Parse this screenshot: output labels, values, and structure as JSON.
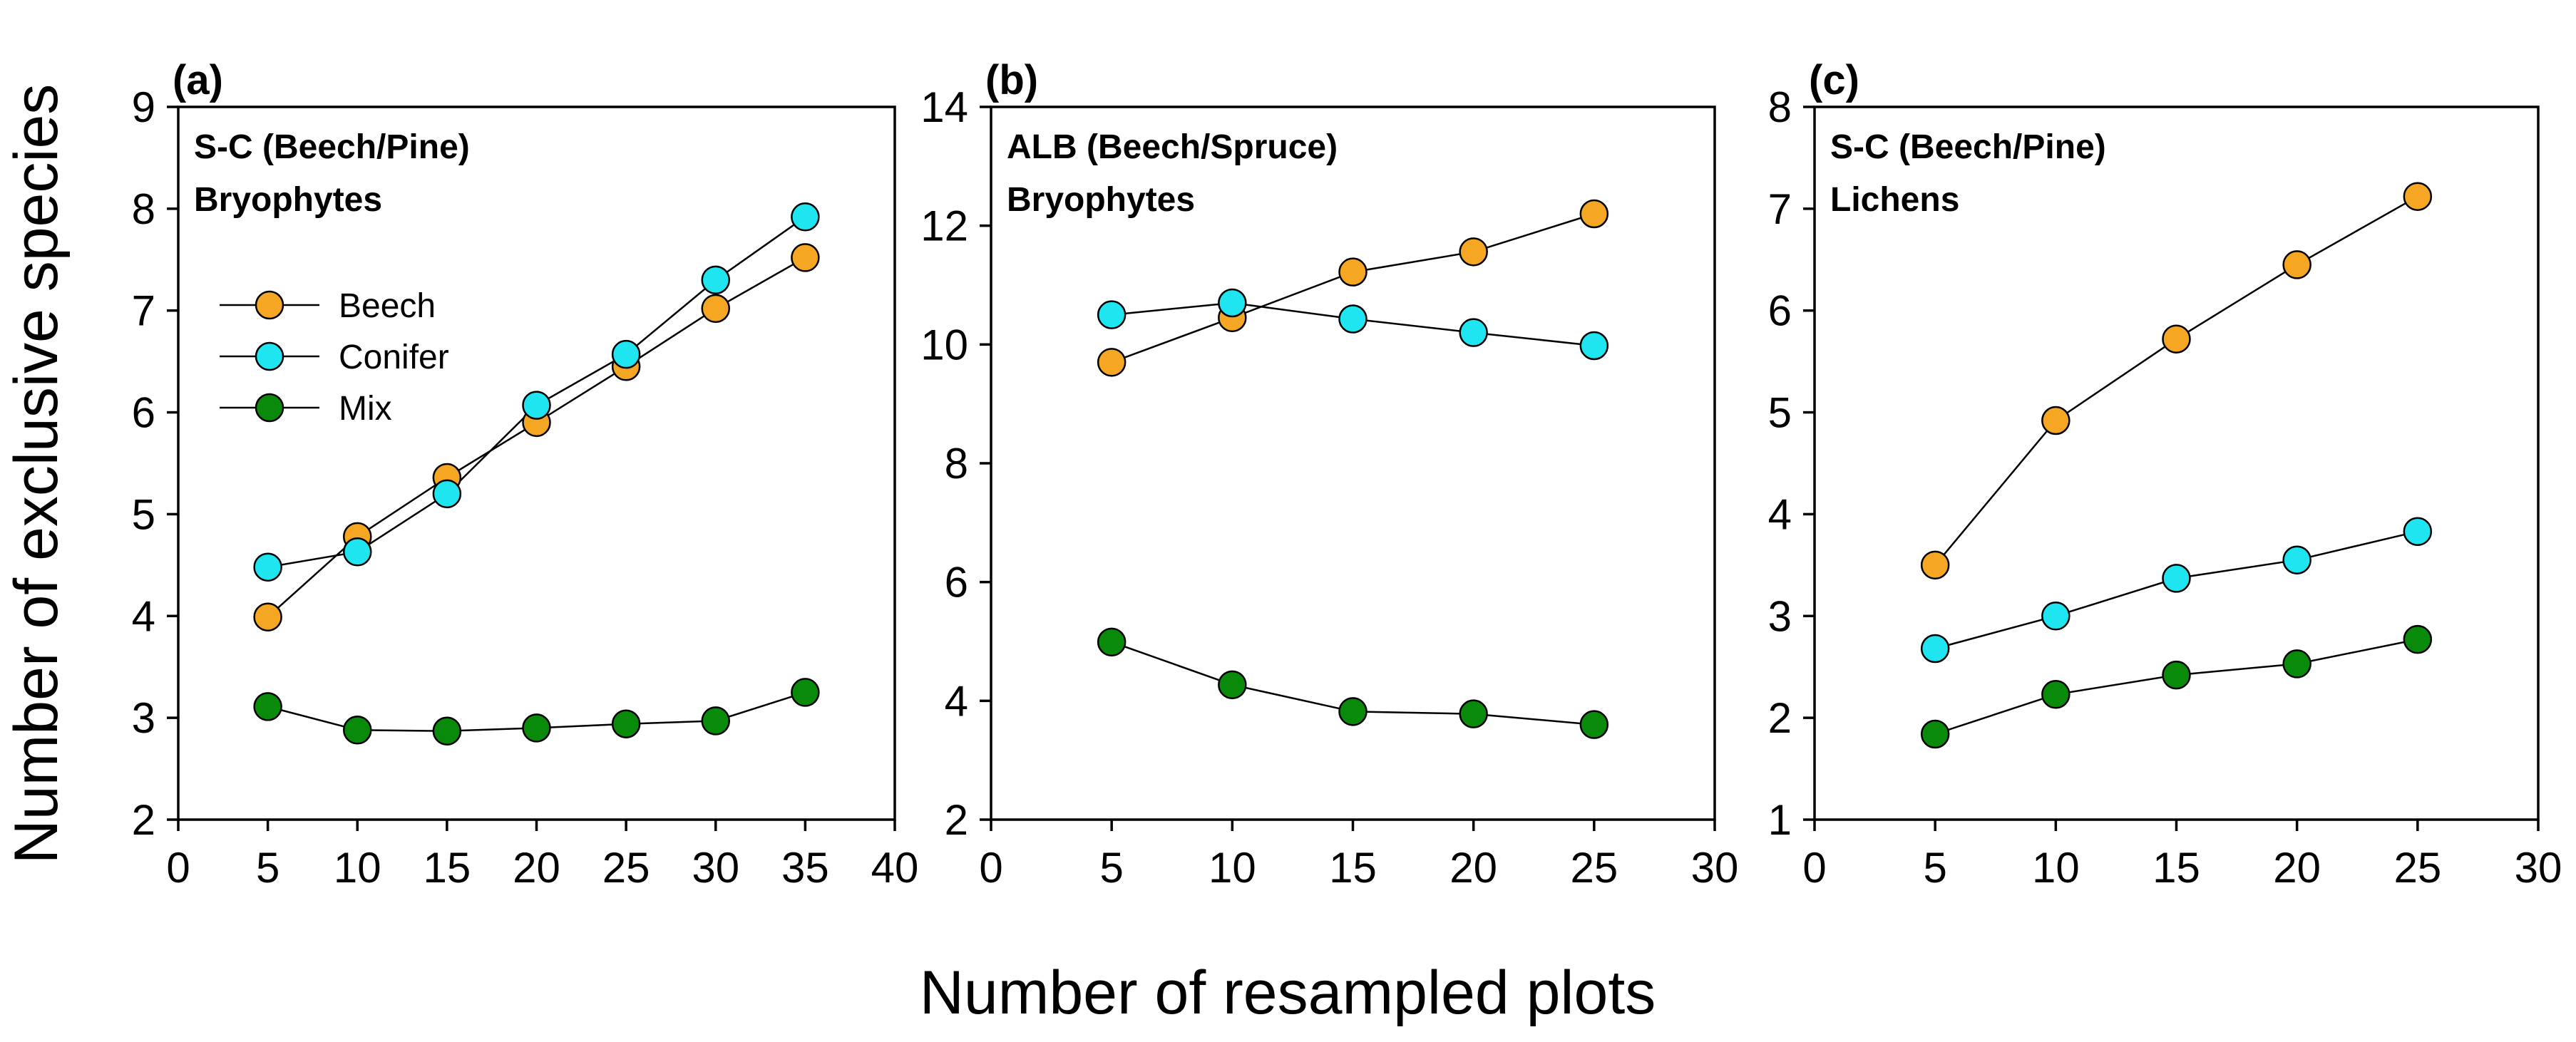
{
  "figure": {
    "ylabel": "Number of exclusive species",
    "xlabel": "Number of resampled plots"
  },
  "legend": {
    "items": [
      {
        "label": "Beech",
        "color": "#F5A623"
      },
      {
        "label": "Conifer",
        "color": "#1FE5F0"
      },
      {
        "label": "Mix",
        "color": "#0A8A0A"
      }
    ]
  },
  "chart_data": [
    {
      "type": "line",
      "panel_label": "(a)",
      "title_line1": "S-C (Beech/Pine)",
      "title_line2": "Bryophytes",
      "xlim": [
        0,
        40
      ],
      "ylim": [
        2,
        9
      ],
      "xticks": [
        0,
        5,
        10,
        15,
        20,
        25,
        30,
        35,
        40
      ],
      "yticks": [
        2,
        3,
        4,
        5,
        6,
        7,
        8,
        9
      ],
      "show_legend": true,
      "series": [
        {
          "name": "Beech",
          "color": "#F5A623",
          "x": [
            5,
            10,
            15,
            20,
            25,
            30,
            35
          ],
          "values": [
            3.99,
            4.78,
            5.36,
            5.9,
            6.45,
            7.02,
            7.52
          ]
        },
        {
          "name": "Conifer",
          "color": "#1FE5F0",
          "x": [
            5,
            10,
            15,
            20,
            25,
            30,
            35
          ],
          "values": [
            4.48,
            4.63,
            5.2,
            6.07,
            6.57,
            7.3,
            7.92
          ]
        },
        {
          "name": "Mix",
          "color": "#0A8A0A",
          "x": [
            5,
            10,
            15,
            20,
            25,
            30,
            35
          ],
          "values": [
            3.11,
            2.88,
            2.87,
            2.9,
            2.94,
            2.97,
            3.25
          ]
        }
      ]
    },
    {
      "type": "line",
      "panel_label": "(b)",
      "title_line1": "ALB (Beech/Spruce)",
      "title_line2": "Bryophytes",
      "xlim": [
        0,
        30
      ],
      "ylim": [
        2,
        14
      ],
      "xticks": [
        0,
        5,
        10,
        15,
        20,
        25,
        30
      ],
      "yticks": [
        2,
        4,
        6,
        8,
        10,
        12,
        14
      ],
      "show_legend": false,
      "series": [
        {
          "name": "Beech",
          "color": "#F5A623",
          "x": [
            5,
            10,
            15,
            20,
            25
          ],
          "values": [
            9.7,
            10.45,
            11.22,
            11.56,
            12.2
          ]
        },
        {
          "name": "Conifer",
          "color": "#1FE5F0",
          "x": [
            5,
            10,
            15,
            20,
            25
          ],
          "values": [
            10.5,
            10.7,
            10.43,
            10.2,
            9.98
          ]
        },
        {
          "name": "Mix",
          "color": "#0A8A0A",
          "x": [
            5,
            10,
            15,
            20,
            25
          ],
          "values": [
            4.99,
            4.27,
            3.82,
            3.78,
            3.6
          ]
        }
      ]
    },
    {
      "type": "line",
      "panel_label": "(c)",
      "title_line1": "S-C (Beech/Pine)",
      "title_line2": "Lichens",
      "xlim": [
        0,
        30
      ],
      "ylim": [
        1,
        8
      ],
      "xticks": [
        0,
        5,
        10,
        15,
        20,
        25,
        30
      ],
      "yticks": [
        1,
        2,
        3,
        4,
        5,
        6,
        7,
        8
      ],
      "show_legend": false,
      "series": [
        {
          "name": "Beech",
          "color": "#F5A623",
          "x": [
            5,
            10,
            15,
            20,
            25
          ],
          "values": [
            3.5,
            4.92,
            5.72,
            6.45,
            7.12
          ]
        },
        {
          "name": "Conifer",
          "color": "#1FE5F0",
          "x": [
            5,
            10,
            15,
            20,
            25
          ],
          "values": [
            2.68,
            3.0,
            3.37,
            3.55,
            3.83
          ]
        },
        {
          "name": "Mix",
          "color": "#0A8A0A",
          "x": [
            5,
            10,
            15,
            20,
            25
          ],
          "values": [
            1.84,
            2.23,
            2.42,
            2.53,
            2.77
          ]
        }
      ]
    }
  ]
}
